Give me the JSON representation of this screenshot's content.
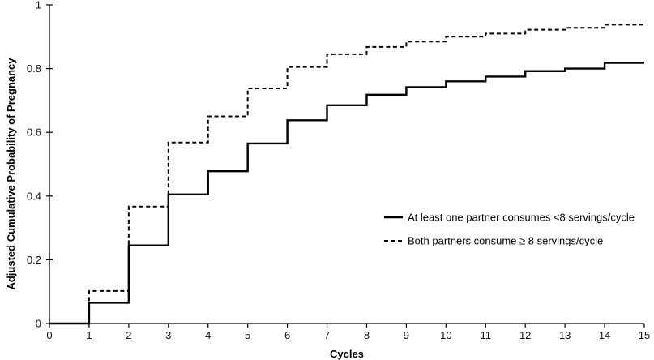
{
  "chart_data": {
    "type": "line",
    "step": true,
    "title": "",
    "xlabel": "Cycles",
    "ylabel": "Adjusted Cumulative Probability of Pregnancy",
    "xlim": [
      0,
      15
    ],
    "ylim": [
      0,
      1
    ],
    "x_ticks": [
      0,
      1,
      2,
      3,
      4,
      5,
      6,
      7,
      8,
      9,
      10,
      11,
      12,
      13,
      14,
      15
    ],
    "y_ticks": [
      0,
      0.2,
      0.4,
      0.6,
      0.8,
      1
    ],
    "y_tick_labels": [
      "0",
      "0.2",
      "0.4",
      "0.6",
      "0.8",
      "1"
    ],
    "grid": false,
    "legend_position": "right",
    "x": [
      0,
      1,
      2,
      3,
      4,
      5,
      6,
      7,
      8,
      9,
      10,
      11,
      12,
      13,
      14,
      15
    ],
    "series": [
      {
        "name": "At least one partner consumes <8 servings/cycle",
        "style": "solid",
        "color": "#000000",
        "values": [
          0,
          0.065,
          0.245,
          0.405,
          0.478,
          0.565,
          0.638,
          0.685,
          0.718,
          0.742,
          0.76,
          0.775,
          0.792,
          0.8,
          0.818,
          0.818
        ]
      },
      {
        "name": "Both partners consume ≥ 8 servings/cycle",
        "style": "dashed",
        "color": "#000000",
        "values": [
          0,
          0.102,
          0.367,
          0.568,
          0.65,
          0.738,
          0.805,
          0.845,
          0.868,
          0.885,
          0.9,
          0.91,
          0.922,
          0.928,
          0.938,
          0.938
        ]
      }
    ]
  }
}
